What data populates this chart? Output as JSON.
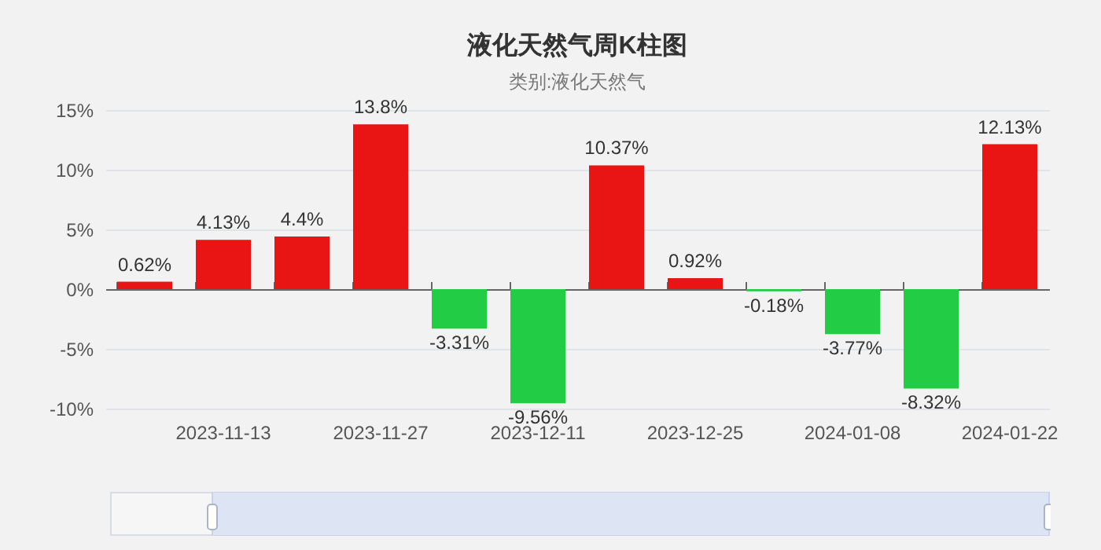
{
  "chart_data": {
    "type": "bar",
    "title": "液化天然气周K柱图",
    "subtitle": "类别:液化天然气",
    "categories": [
      null,
      "2023-11-13",
      null,
      "2023-11-27",
      null,
      "2023-12-11",
      null,
      "2023-12-25",
      null,
      "2024-01-08",
      null,
      "2024-01-22"
    ],
    "values": [
      0.62,
      4.13,
      4.4,
      13.8,
      -3.31,
      -9.56,
      10.37,
      0.92,
      -0.18,
      -3.77,
      -8.32,
      12.13
    ],
    "colors": [
      "#e91414",
      "#e91414",
      "#e91414",
      "#e91414",
      "#22cc44",
      "#22cc44",
      "#e91414",
      "#e91414",
      "#22cc44",
      "#22cc44",
      "#22cc44",
      "#e91414"
    ],
    "value_labels": [
      "0.62%",
      "4.13%",
      "4.4%",
      "13.8%",
      "-3.31%",
      "-9.56%",
      "10.37%",
      "0.92%",
      "-0.18%",
      "-3.77%",
      "-8.32%",
      "12.13%"
    ],
    "ylim": [
      -10,
      15
    ],
    "yticks": [
      {
        "value": -10,
        "label": "-10%"
      },
      {
        "value": -5,
        "label": "-5%"
      },
      {
        "value": 0,
        "label": "0%"
      },
      {
        "value": 5,
        "label": "5%"
      },
      {
        "value": 10,
        "label": "10%"
      },
      {
        "value": 15,
        "label": "15%"
      }
    ],
    "grid": "y"
  }
}
